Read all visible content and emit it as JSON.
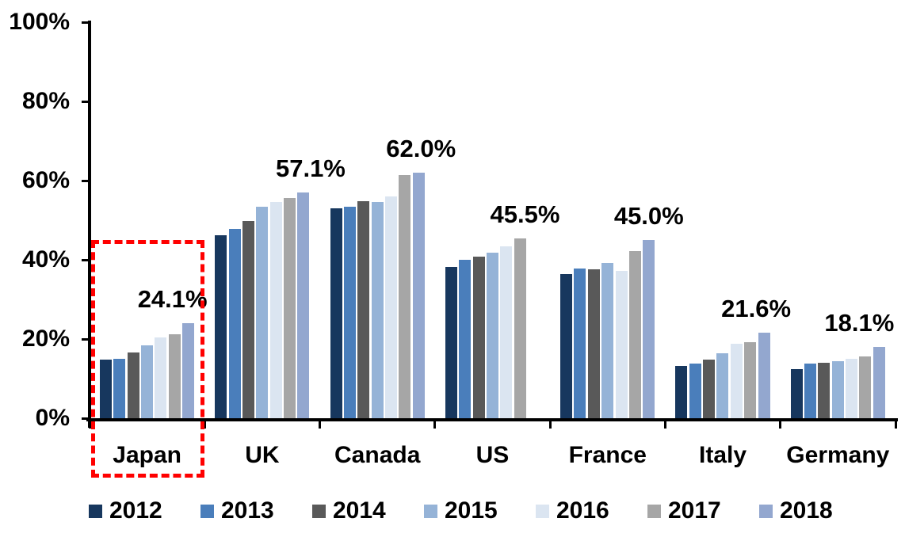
{
  "chart_data": {
    "type": "bar",
    "title": "",
    "xlabel": "",
    "ylabel": "",
    "ylim": [
      0,
      100
    ],
    "grid": false,
    "yticks": [
      "0%",
      "20%",
      "40%",
      "60%",
      "80%",
      "100%"
    ],
    "categories": [
      "Japan",
      "UK",
      "Canada",
      "US",
      "France",
      "Italy",
      "Germany"
    ],
    "series": [
      {
        "name": "2012",
        "color": "#17375E",
        "values": [
          14.8,
          46.2,
          53.0,
          38.2,
          36.5,
          13.3,
          12.5
        ]
      },
      {
        "name": "2013",
        "color": "#4A7EBB",
        "values": [
          15.0,
          47.8,
          53.4,
          40.0,
          37.9,
          13.9,
          13.8
        ]
      },
      {
        "name": "2014",
        "color": "#595959",
        "values": [
          16.7,
          49.9,
          54.9,
          40.9,
          37.7,
          14.9,
          14.0
        ]
      },
      {
        "name": "2015",
        "color": "#95B3D7",
        "values": [
          18.4,
          53.4,
          54.6,
          41.9,
          39.3,
          16.5,
          14.4
        ]
      },
      {
        "name": "2016",
        "color": "#DBE5F1",
        "values": [
          20.4,
          54.6,
          56.0,
          43.4,
          37.2,
          18.8,
          15.0
        ]
      },
      {
        "name": "2017",
        "color": "#A6A6A6",
        "values": [
          21.3,
          55.6,
          61.5,
          45.5,
          42.3,
          19.2,
          15.6
        ]
      },
      {
        "name": "2018",
        "color": "#93A7CF",
        "values": [
          24.1,
          57.1,
          62.0,
          null,
          45.0,
          21.6,
          18.1
        ]
      }
    ],
    "annotations": [
      {
        "category": "Japan",
        "text": "24.1%",
        "dx": 32
      },
      {
        "category": "UK",
        "text": "57.1%",
        "dx": 61
      },
      {
        "category": "Canada",
        "text": "62.0%",
        "dx": 55
      },
      {
        "category": "US",
        "text": "45.5%",
        "dx": 41
      },
      {
        "category": "France",
        "text": "45.0%",
        "dx": 52
      },
      {
        "category": "Italy",
        "text": "21.6%",
        "dx": 42
      },
      {
        "category": "Germany",
        "text": "18.1%",
        "dx": 27
      }
    ],
    "legend": {
      "position": "bottom",
      "entries": [
        "2012",
        "2013",
        "2014",
        "2015",
        "2016",
        "2017",
        "2018"
      ]
    },
    "highlight": {
      "category": "Japan",
      "style": "red-dashed-box",
      "color": "#FF0000"
    }
  }
}
